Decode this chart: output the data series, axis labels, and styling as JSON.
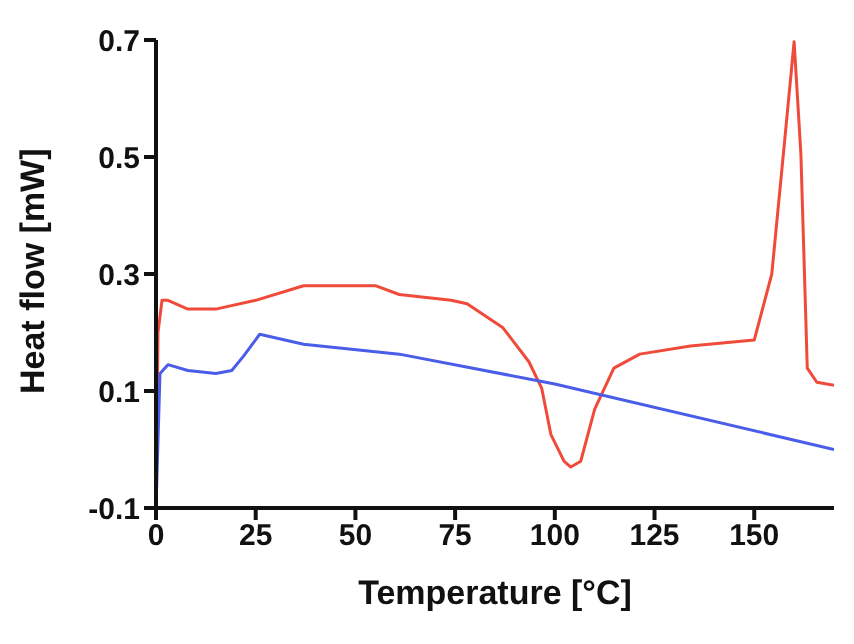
{
  "chart_data": {
    "type": "line",
    "xlabel": "Temperature [°C]",
    "ylabel": "Heat flow [mW]",
    "xlim": [
      0,
      170
    ],
    "xticks": [
      0,
      25,
      50,
      75,
      100,
      125,
      150
    ],
    "ylim": [
      -0.1,
      0.7
    ],
    "yticks": [
      -0.1,
      0.1,
      0.3,
      0.5,
      0.7
    ],
    "marker": "none",
    "line_style": "solid",
    "series": [
      {
        "color": "#f04a3a",
        "x": [
          0,
          0.5,
          1.5,
          3,
          8,
          15,
          25,
          37,
          55,
          61,
          74,
          78,
          87,
          93.5,
          96.7,
          99,
          102.3,
          104,
          106.5,
          110,
          114.8,
          121.3,
          134,
          150,
          154.4,
          157.6,
          160,
          161.7,
          163.3,
          165.7,
          170
        ],
        "values": [
          -0.1,
          0.2,
          0.255,
          0.255,
          0.24,
          0.24,
          0.255,
          0.28,
          0.28,
          0.265,
          0.255,
          0.249,
          0.208,
          0.15,
          0.105,
          0.026,
          -0.02,
          -0.03,
          -0.02,
          0.069,
          0.139,
          0.163,
          0.177,
          0.187,
          0.3,
          0.526,
          0.697,
          0.505,
          0.139,
          0.115,
          0.11
        ]
      },
      {
        "color": "#4a5de8",
        "x": [
          0,
          1,
          3,
          8,
          15,
          19,
          22,
          26,
          37,
          61,
          100,
          170
        ],
        "values": [
          -0.1,
          0.13,
          0.145,
          0.135,
          0.13,
          0.135,
          0.16,
          0.197,
          0.18,
          0.163,
          0.112,
          0.0
        ]
      }
    ]
  }
}
